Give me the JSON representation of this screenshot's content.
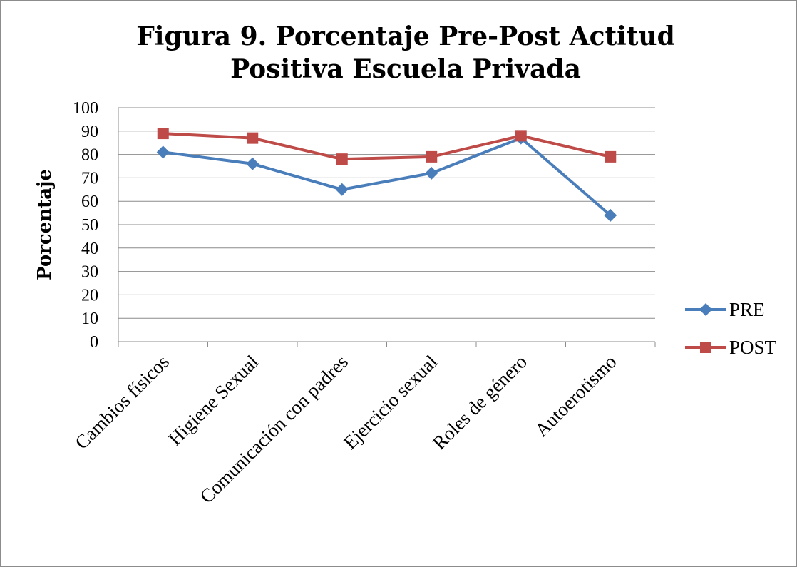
{
  "chart_data": {
    "type": "line",
    "title_lines": [
      "Figura 9. Porcentaje Pre-Post Actitud",
      "Positiva Escuela Privada"
    ],
    "xlabel": "",
    "ylabel": "Porcentaje",
    "ylim": [
      0,
      100
    ],
    "yticks": [
      0,
      10,
      20,
      30,
      40,
      50,
      60,
      70,
      80,
      90,
      100
    ],
    "grid": true,
    "legend_position": "right",
    "categories": [
      "Cambios físicos",
      "Higiene Sexual",
      "Comunicación con padres",
      "Ejercicio sexual",
      "Roles de género",
      "Autoerotismo"
    ],
    "series": [
      {
        "name": "PRE",
        "color": "#4a7ebb",
        "marker": "diamond",
        "values": [
          81,
          76,
          65,
          72,
          87,
          54
        ]
      },
      {
        "name": "POST",
        "color": "#be4b48",
        "marker": "square",
        "values": [
          89,
          87,
          78,
          79,
          88,
          79
        ]
      }
    ]
  }
}
